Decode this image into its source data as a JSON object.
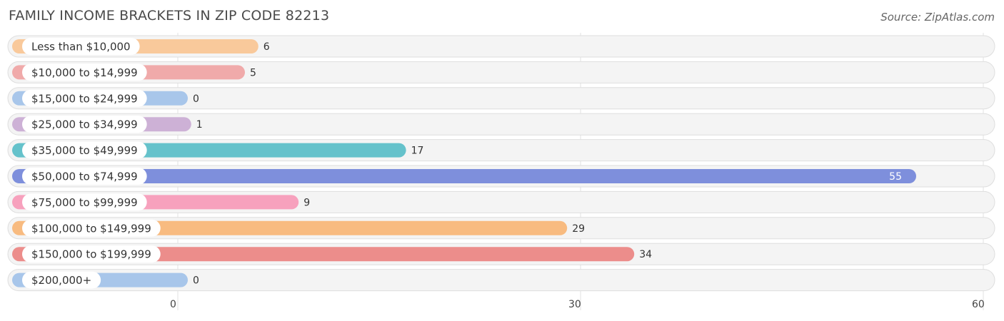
{
  "header": {
    "title": "FAMILY INCOME BRACKETS IN ZIP CODE 82213",
    "source": "Source: ZipAtlas.com"
  },
  "chart_data": {
    "type": "bar",
    "orientation": "horizontal",
    "categories": [
      "Less than $10,000",
      "$10,000 to $14,999",
      "$15,000 to $24,999",
      "$25,000 to $34,999",
      "$35,000 to $49,999",
      "$50,000 to $74,999",
      "$75,000 to $99,999",
      "$100,000 to $149,999",
      "$150,000 to $199,999",
      "$200,000+"
    ],
    "values": [
      6,
      5,
      0,
      1,
      17,
      55,
      9,
      29,
      34,
      0
    ],
    "colors": [
      "#f9c99b",
      "#f0aaaa",
      "#a8c6ea",
      "#cdb1d6",
      "#65c2cb",
      "#7e8fdc",
      "#f7a1bd",
      "#f8bb80",
      "#ec8d8b",
      "#a8c6ea"
    ],
    "xlim": [
      0,
      60
    ],
    "xticks": [
      0,
      30,
      60
    ],
    "grid": true,
    "legend": "none"
  }
}
